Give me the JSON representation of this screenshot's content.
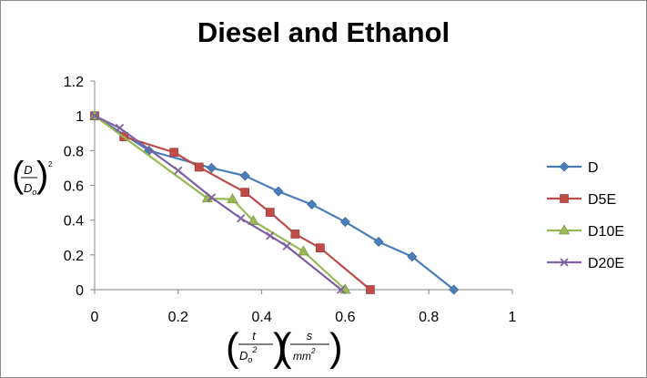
{
  "chart_data": {
    "type": "line",
    "title": "Diesel and Ethanol",
    "xlim": [
      0,
      1
    ],
    "ylim": [
      0,
      1.2
    ],
    "x_ticks": [
      "0",
      "0.2",
      "0.4",
      "0.6",
      "0.8",
      "1"
    ],
    "y_ticks": [
      "0",
      "0.2",
      "0.4",
      "0.6",
      "0.8",
      "1",
      "1.2"
    ],
    "xlabel": {
      "frac_num": "t",
      "frac_den_base": "D",
      "frac_den_sub": "o",
      "frac_den_sup": "2",
      "unit_num": "s",
      "unit_den_base": "mm",
      "unit_den_sup": "2"
    },
    "ylabel": {
      "frac_num": "D",
      "frac_den_base": "D",
      "frac_den_sub": "o",
      "power": "2"
    },
    "legend_position": "right",
    "grid": false,
    "series": [
      {
        "name": "D",
        "color": "#4a7ebb",
        "marker": "diamond",
        "points": [
          [
            0,
            1
          ],
          [
            0.13,
            0.8
          ],
          [
            0.28,
            0.7
          ],
          [
            0.36,
            0.655
          ],
          [
            0.44,
            0.565
          ],
          [
            0.52,
            0.49
          ],
          [
            0.6,
            0.39
          ],
          [
            0.68,
            0.275
          ],
          [
            0.76,
            0.19
          ],
          [
            0.86,
            0
          ]
        ]
      },
      {
        "name": "D5E",
        "color": "#be4b48",
        "marker": "square",
        "points": [
          [
            0,
            1
          ],
          [
            0.07,
            0.88
          ],
          [
            0.19,
            0.79
          ],
          [
            0.25,
            0.705
          ],
          [
            0.36,
            0.56
          ],
          [
            0.42,
            0.445
          ],
          [
            0.48,
            0.32
          ],
          [
            0.54,
            0.24
          ],
          [
            0.66,
            0
          ]
        ]
      },
      {
        "name": "D10E",
        "color": "#98b954",
        "marker": "triangle",
        "points": [
          [
            0,
            1
          ],
          [
            0.27,
            0.525
          ],
          [
            0.33,
            0.52
          ],
          [
            0.38,
            0.395
          ],
          [
            0.5,
            0.22
          ],
          [
            0.6,
            0
          ]
        ]
      },
      {
        "name": "D20E",
        "color": "#7d60a0",
        "marker": "x",
        "points": [
          [
            0,
            1
          ],
          [
            0.06,
            0.93
          ],
          [
            0.2,
            0.685
          ],
          [
            0.28,
            0.53
          ],
          [
            0.35,
            0.41
          ],
          [
            0.42,
            0.31
          ],
          [
            0.46,
            0.25
          ],
          [
            0.59,
            0
          ]
        ]
      }
    ]
  }
}
